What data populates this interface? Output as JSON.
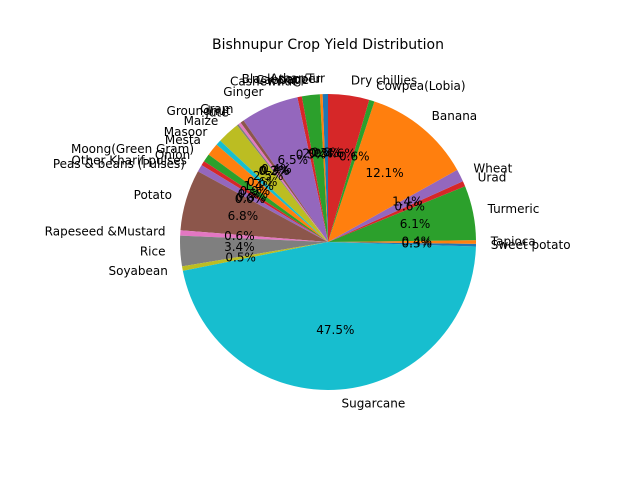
{
  "chart_data": {
    "type": "pie",
    "title": "Bishnupur Crop Yield Distribution",
    "start_angle_deg": 90,
    "direction": "counterclockwise",
    "slices": [
      {
        "label": "Arhar/Tur",
        "value": 0.6,
        "pct_label": "0.6%",
        "color": "#1f77b4"
      },
      {
        "label": "Black pepper",
        "value": 0.3,
        "pct_label": "0.3%",
        "color": "#ff7f0e"
      },
      {
        "label": "Cabbage",
        "value": 2.0,
        "pct_label": "2.0%",
        "color": "#2ca02c"
      },
      {
        "label": "Cashewnut",
        "value": 0.5,
        "pct_label": "0.5%",
        "color": "#d62728"
      },
      {
        "label": "Ginger",
        "value": 6.5,
        "pct_label": "6.5%",
        "color": "#9467bd"
      },
      {
        "label": "Gram",
        "value": 0.4,
        "pct_label": "0.4%",
        "color": "#8c564b"
      },
      {
        "label": "Groundnut",
        "value": 0.3,
        "pct_label": "0.3%",
        "color": "#e377c2"
      },
      {
        "label": "Jute",
        "value": 0.2,
        "pct_label": "0.2%",
        "color": "#7f7f7f"
      },
      {
        "label": "Maize",
        "value": 2.5,
        "pct_label": "2.5%",
        "color": "#bcbd22"
      },
      {
        "label": "Masoor",
        "value": 0.6,
        "pct_label": "0.6%",
        "color": "#17becf"
      },
      {
        "label": "Mesta",
        "value": 1.4,
        "pct_label": "1.4%",
        "color": "#ff7f0e"
      },
      {
        "label": "Moong(Green Gram)",
        "value": 0.9,
        "pct_label": "0.9%",
        "color": "#2ca02c"
      },
      {
        "label": "Onion",
        "value": 0.5,
        "pct_label": "0.5%",
        "color": "#d62728"
      },
      {
        "label": "Other Kharif pulses",
        "value": 0.8,
        "pct_label": "0.8%",
        "color": "#9467bd"
      },
      {
        "label": "Peas & beans (Pulses)",
        "value": 0.0,
        "pct_label": "0.0%",
        "color": "#8c564b"
      },
      {
        "label": "Potato",
        "value": 6.8,
        "pct_label": "6.8%",
        "color": "#8c564b"
      },
      {
        "label": "Rapeseed &Mustard",
        "value": 0.6,
        "pct_label": "0.6%",
        "color": "#e377c2"
      },
      {
        "label": "Rice",
        "value": 3.4,
        "pct_label": "3.4%",
        "color": "#7f7f7f"
      },
      {
        "label": "Soyabean",
        "value": 0.5,
        "pct_label": "0.5%",
        "color": "#bcbd22"
      },
      {
        "label": "Sugarcane",
        "value": 47.5,
        "pct_label": "47.5%",
        "color": "#17becf"
      },
      {
        "label": "Sweet potato",
        "value": 0.3,
        "pct_label": "0.3%",
        "color": "#1f77b4"
      },
      {
        "label": "Tapioca",
        "value": 0.4,
        "pct_label": "0.4%",
        "color": "#ff7f0e"
      },
      {
        "label": "Turmeric",
        "value": 6.1,
        "pct_label": "6.1%",
        "color": "#2ca02c"
      },
      {
        "label": "Urad",
        "value": 0.6,
        "pct_label": "0.6%",
        "color": "#d62728"
      },
      {
        "label": "Wheat",
        "value": 1.4,
        "pct_label": "1.4%",
        "color": "#9467bd"
      },
      {
        "label": "Banana",
        "value": 12.1,
        "pct_label": "12.1%",
        "color": "#ff7f0e"
      },
      {
        "label": "Cowpea(Lobia)",
        "value": 0.6,
        "pct_label": "0.6%",
        "color": "#2ca02c"
      },
      {
        "label": "Dry chillies",
        "value": 4.6,
        "pct_label": "4.6%",
        "color": "#d62728"
      }
    ]
  }
}
